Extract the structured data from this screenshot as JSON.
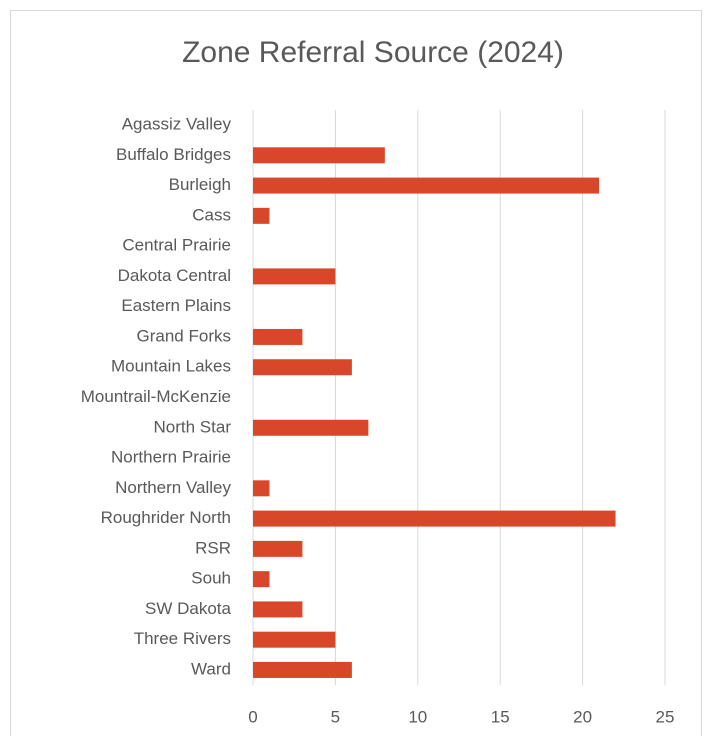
{
  "chart_data": {
    "type": "barh",
    "title": "Zone Referral Source (2024)",
    "categories": [
      "Agassiz Valley",
      "Buffalo Bridges",
      "Burleigh",
      "Cass",
      "Central Prairie",
      "Dakota Central",
      "Eastern Plains",
      "Grand Forks",
      "Mountain Lakes",
      "Mountrail-McKenzie",
      "North Star",
      "Northern Prairie",
      "Northern Valley",
      "Roughrider North",
      "RSR",
      "Souh",
      "SW Dakota",
      "Three Rivers",
      "Ward"
    ],
    "values": [
      0,
      8,
      21,
      1,
      0,
      5,
      0,
      3,
      6,
      0,
      7,
      0,
      1,
      22,
      3,
      1,
      3,
      5,
      6
    ],
    "color": "#d9472b",
    "xlim": [
      0,
      25
    ],
    "xticks": [
      0,
      5,
      10,
      15,
      20,
      25
    ],
    "grid": true
  }
}
